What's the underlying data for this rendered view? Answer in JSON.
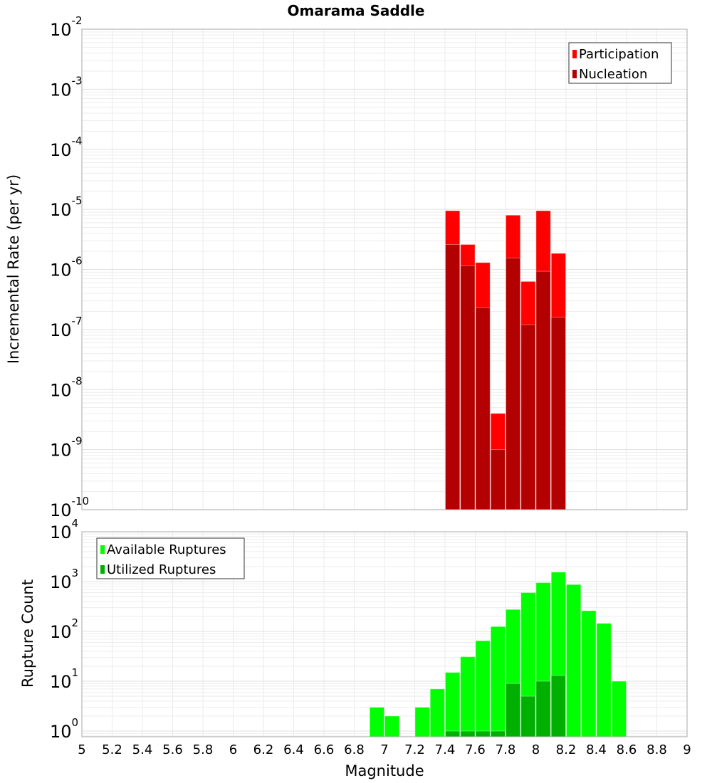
{
  "chart_data": [
    {
      "type": "bar",
      "title": "Omarama Saddle",
      "xlabel": "",
      "ylabel": "Incremental Rate (per yr)",
      "yscale": "log",
      "ylim": [
        1e-10,
        0.01
      ],
      "xlim": [
        5,
        9
      ],
      "ytick_exponents": [
        -10,
        -9,
        -8,
        -7,
        -6,
        -5,
        -4,
        -3,
        -2
      ],
      "grid": true,
      "legend_position": "top-right",
      "x": [
        7.45,
        7.55,
        7.65,
        7.75,
        7.85,
        7.95,
        8.05,
        8.15
      ],
      "series": [
        {
          "name": "Participation",
          "color": "#ff0000",
          "values": [
            9.5e-06,
            2.6e-06,
            1.3e-06,
            4e-09,
            8e-06,
            6.3e-07,
            9.5e-06,
            1.85e-06
          ]
        },
        {
          "name": "Nucleation",
          "color": "#b30000",
          "values": [
            2.6e-06,
            1.15e-06,
            2.3e-07,
            1e-09,
            1.55e-06,
            1.2e-07,
            9.3e-07,
            1.6e-07
          ]
        }
      ]
    },
    {
      "type": "bar",
      "title": "",
      "xlabel": "Magnitude",
      "ylabel": "Rupture Count",
      "yscale": "log",
      "ylim": [
        0.77,
        10000.0
      ],
      "xlim": [
        5,
        9
      ],
      "xticks": [
        "5",
        "5.2",
        "5.4",
        "5.6",
        "5.8",
        "6",
        "6.2",
        "6.4",
        "6.6",
        "6.8",
        "7",
        "7.2",
        "7.4",
        "7.6",
        "7.8",
        "8",
        "8.2",
        "8.4",
        "8.6",
        "8.8",
        "9"
      ],
      "ytick_exponents": [
        0,
        1,
        2,
        3,
        4
      ],
      "grid": true,
      "legend_position": "top-left",
      "x": [
        6.95,
        7.05,
        7.15,
        7.25,
        7.35,
        7.45,
        7.55,
        7.65,
        7.75,
        7.85,
        7.95,
        8.05,
        8.15,
        8.25,
        8.35,
        8.45,
        8.55
      ],
      "series": [
        {
          "name": "Available Ruptures",
          "color": "#00ff00",
          "values": [
            3,
            2,
            0,
            3,
            7,
            15,
            31,
            65,
            125,
            275,
            600,
            950,
            1550,
            870,
            260,
            145,
            10
          ]
        },
        {
          "name": "Utilized Ruptures",
          "color": "#00b000",
          "values": [
            0,
            0,
            0,
            0,
            0,
            1,
            1,
            1,
            1,
            9,
            5,
            10,
            13,
            0,
            0,
            0,
            0
          ]
        }
      ]
    }
  ]
}
